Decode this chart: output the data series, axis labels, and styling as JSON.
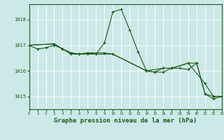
{
  "background_color": "#cce8e8",
  "grid_color": "#ffffff",
  "line_color": "#1a5c1a",
  "xlabel": "Graphe pression niveau de la mer (hPa)",
  "xlabel_fontsize": 6.5,
  "xlim": [
    0,
    23
  ],
  "ylim": [
    1014.5,
    1018.6
  ],
  "yticks": [
    1015,
    1016,
    1017,
    1018
  ],
  "xticks": [
    0,
    1,
    2,
    3,
    4,
    5,
    6,
    7,
    8,
    9,
    10,
    11,
    12,
    13,
    14,
    15,
    16,
    17,
    18,
    19,
    20,
    21,
    22,
    23
  ],
  "series1": [
    [
      0,
      1017.0
    ],
    [
      1,
      1016.85
    ],
    [
      2,
      1016.9
    ],
    [
      3,
      1017.0
    ],
    [
      4,
      1016.85
    ],
    [
      5,
      1016.7
    ],
    [
      6,
      1016.65
    ],
    [
      7,
      1016.7
    ],
    [
      8,
      1016.65
    ],
    [
      9,
      1017.1
    ],
    [
      10,
      1018.3
    ],
    [
      11,
      1018.4
    ],
    [
      12,
      1017.6
    ],
    [
      13,
      1016.75
    ],
    [
      14,
      1016.0
    ],
    [
      15,
      1015.95
    ],
    [
      16,
      1015.95
    ],
    [
      17,
      1016.1
    ],
    [
      18,
      1016.1
    ],
    [
      19,
      1016.05
    ],
    [
      20,
      1016.3
    ],
    [
      21,
      1015.1
    ],
    [
      22,
      1014.9
    ],
    [
      23,
      1015.0
    ]
  ],
  "series2": [
    [
      0,
      1017.0
    ],
    [
      3,
      1017.05
    ],
    [
      4,
      1016.85
    ],
    [
      5,
      1016.7
    ],
    [
      6,
      1016.65
    ],
    [
      7,
      1016.65
    ],
    [
      8,
      1016.65
    ],
    [
      10,
      1016.65
    ],
    [
      14,
      1016.0
    ],
    [
      15,
      1015.95
    ],
    [
      16,
      1016.1
    ],
    [
      17,
      1016.1
    ],
    [
      19,
      1016.3
    ],
    [
      20,
      1016.3
    ],
    [
      21,
      1015.1
    ],
    [
      22,
      1015.0
    ],
    [
      23,
      1015.0
    ]
  ],
  "series3": [
    [
      0,
      1017.0
    ],
    [
      3,
      1017.05
    ],
    [
      4,
      1016.85
    ],
    [
      5,
      1016.65
    ],
    [
      6,
      1016.65
    ],
    [
      7,
      1016.7
    ],
    [
      9,
      1016.7
    ],
    [
      10,
      1016.65
    ],
    [
      14,
      1016.0
    ],
    [
      16,
      1016.1
    ],
    [
      17,
      1016.1
    ],
    [
      19,
      1016.3
    ],
    [
      21,
      1015.5
    ],
    [
      22,
      1015.0
    ],
    [
      23,
      1015.0
    ]
  ]
}
